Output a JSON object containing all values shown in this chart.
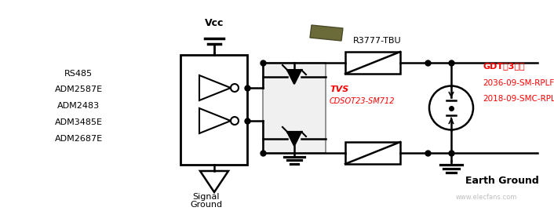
{
  "background_color": "#ffffff",
  "figsize": [
    7.06,
    2.69
  ],
  "dpi": 100,
  "left_labels": [
    "RS485",
    "ADM2587E",
    "ADM2483",
    "ADM3485E",
    "ADM2687E"
  ],
  "text_color_red": "#ff0000",
  "text_color_black": "#000000",
  "watermark": "www.elecfans.com",
  "lw": 1.8
}
